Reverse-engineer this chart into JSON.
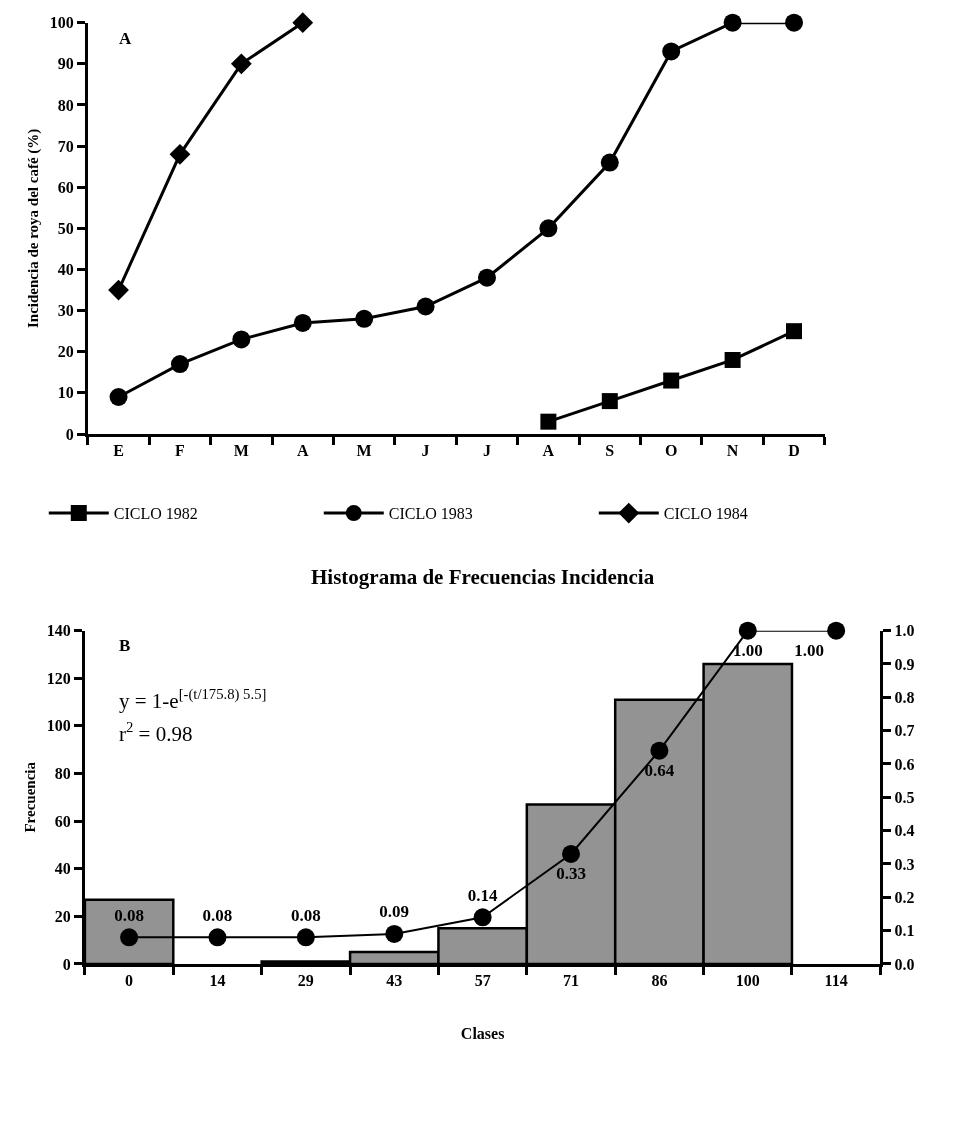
{
  "chart_data": [
    {
      "type": "line",
      "annotations": [
        "A"
      ],
      "ylabel": "Incidencia de roya del café (%)",
      "categories": [
        "E",
        "F",
        "M",
        "A",
        "M",
        "J",
        "J",
        "A",
        "S",
        "O",
        "N",
        "D"
      ],
      "series": [
        {
          "name": "CICLO 1982",
          "color": "#000000",
          "marker": "square",
          "values": [
            null,
            null,
            null,
            null,
            null,
            null,
            null,
            3,
            8,
            13,
            18,
            25
          ]
        },
        {
          "name": "CICLO 1983",
          "color": "#000000",
          "marker": "circle",
          "values": [
            9,
            17,
            23,
            27,
            28,
            31,
            38,
            50,
            66,
            93,
            100,
            100
          ]
        },
        {
          "name": "CICLO 1984",
          "color": "#000000",
          "marker": "diamond",
          "values": [
            35,
            68,
            90,
            100,
            null,
            null,
            null,
            null,
            null,
            null,
            null,
            null
          ]
        }
      ],
      "ylim": [
        0,
        100
      ],
      "yticks": [
        0,
        10,
        20,
        30,
        40,
        50,
        60,
        70,
        80,
        90,
        100
      ],
      "legend": "bottom",
      "line_style": "solid"
    },
    {
      "type": "bar",
      "title": "Histograma de Frecuencias Incidencia",
      "xlabel": "Clases",
      "ylabel": "Frecuencia",
      "annotations": [
        "B",
        "y = 1-e$^{[-(t/175.8) 5.5]}$",
        "r$^{2}$ = 0.98"
      ],
      "categories": [
        "0",
        "14",
        "29",
        "43",
        "57",
        "71",
        "86",
        "100",
        "114"
      ],
      "series": [
        {
          "color": "#939393",
          "values": [
            27,
            0,
            1,
            5,
            15,
            67,
            111,
            126,
            0
          ]
        },
        {
          "type": "line",
          "axis": "y2",
          "color": "#000000",
          "marker": "circle",
          "values": [
            0.08,
            0.08,
            0.08,
            0.09,
            0.14,
            0.33,
            0.64,
            1.0,
            1.0
          ],
          "value_labels": [
            "0.08",
            "0.08",
            "0.08",
            "0.09",
            "0.14",
            "0.33",
            "0.64",
            "1.00",
            "1.00"
          ]
        }
      ],
      "ylim": [
        0,
        140
      ],
      "yticks": [
        0,
        20,
        40,
        60,
        80,
        100,
        120,
        140
      ],
      "y2lim": [
        0,
        1.0
      ],
      "y2ticks": [
        {
          "value": 0,
          "label": "0.0"
        },
        {
          "value": 0.1,
          "label": "0.1"
        },
        {
          "value": 0.2,
          "label": "0.2"
        },
        {
          "value": 0.3,
          "label": "0.3"
        },
        {
          "value": 0.4,
          "label": "0.4"
        },
        {
          "value": 0.5,
          "label": "0.5"
        },
        {
          "value": 0.6,
          "label": "0.6"
        },
        {
          "value": 0.7,
          "label": "0.7"
        },
        {
          "value": 0.8,
          "label": "0.8"
        },
        {
          "value": 0.9,
          "label": "0.9"
        },
        {
          "value": 1.0,
          "label": "1.0"
        }
      ]
    }
  ]
}
